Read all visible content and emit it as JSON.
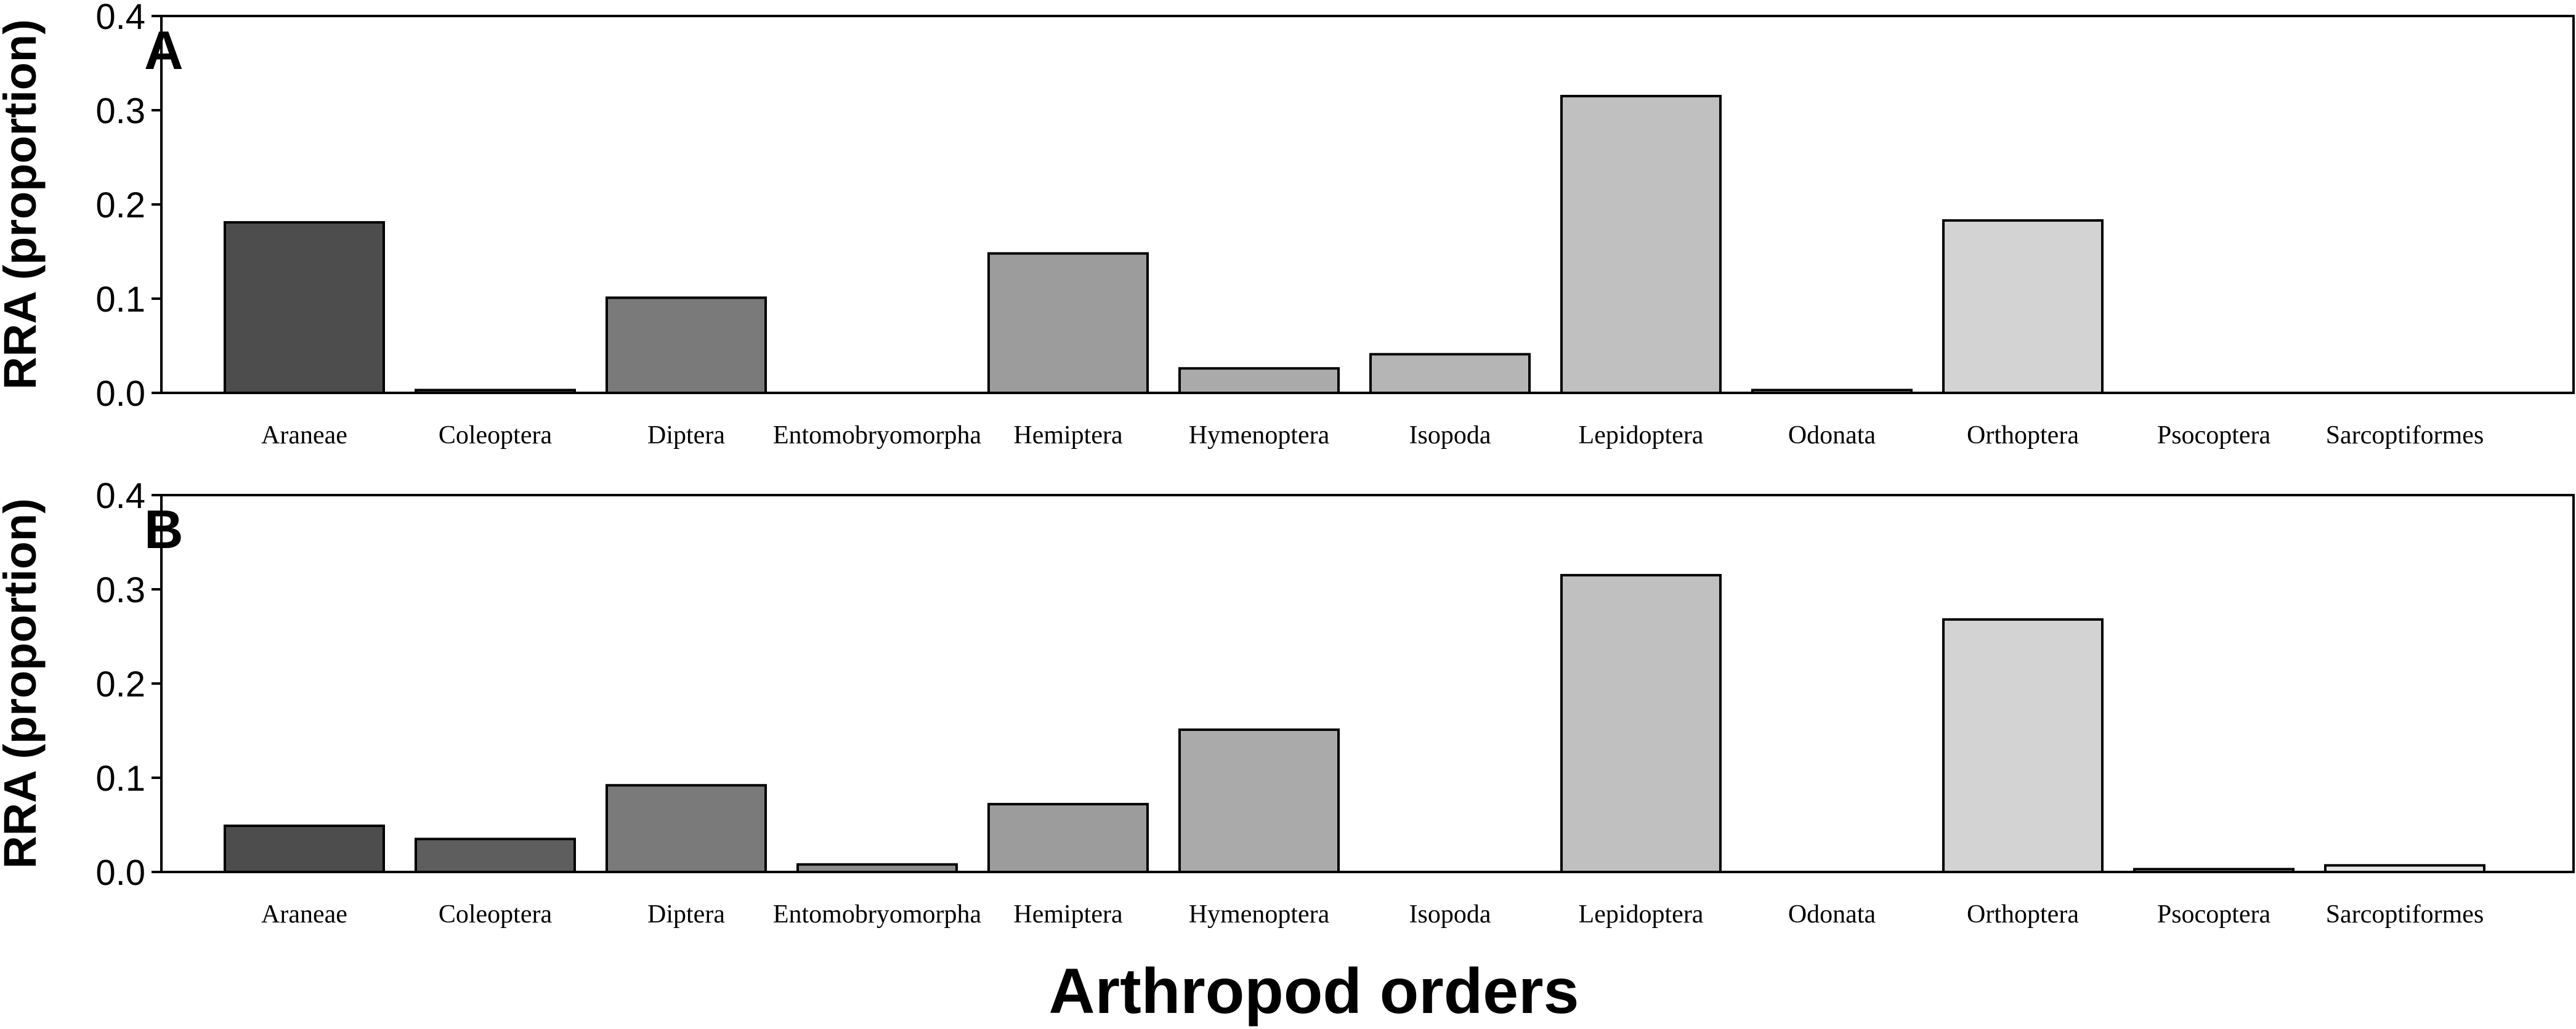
{
  "chart_data": [
    {
      "type": "bar",
      "panel": "A",
      "ylabel": "RRA (proportion)",
      "ylim": [
        0,
        0.4
      ],
      "yticks": [
        "0.0",
        "0.1",
        "0.2",
        "0.3",
        "0.4"
      ],
      "categories": [
        "Araneae",
        "Coleoptera",
        "Diptera",
        "Entomobryomorpha",
        "Hemiptera",
        "Hymenoptera",
        "Isopoda",
        "Lepidoptera",
        "Odonata",
        "Orthoptera",
        "Psocoptera",
        "Sarcoptiformes"
      ],
      "values": [
        0.181,
        0.003,
        0.101,
        0.0,
        0.148,
        0.026,
        0.041,
        0.315,
        0.003,
        0.183,
        0.0,
        0.0
      ],
      "colors": [
        "#4d4d4d",
        "#5e5e5e",
        "#7a7a7a",
        "#8c8c8c",
        "#9c9c9c",
        "#aaaaaa",
        "#b5b5b5",
        "#c0c0c0",
        "#c8c8c8",
        "#d3d3d3",
        "#dcdcdc",
        "#e6e6e6"
      ]
    },
    {
      "type": "bar",
      "panel": "B",
      "ylabel": "RRA (proportion)",
      "ylim": [
        0,
        0.4
      ],
      "yticks": [
        "0.0",
        "0.1",
        "0.2",
        "0.3",
        "0.4"
      ],
      "categories": [
        "Araneae",
        "Coleoptera",
        "Diptera",
        "Entomobryomorpha",
        "Hemiptera",
        "Hymenoptera",
        "Isopoda",
        "Lepidoptera",
        "Odonata",
        "Orthoptera",
        "Psocoptera",
        "Sarcoptiformes"
      ],
      "values": [
        0.049,
        0.035,
        0.092,
        0.008,
        0.072,
        0.151,
        0.0,
        0.315,
        0.0,
        0.268,
        0.003,
        0.007
      ],
      "colors": [
        "#4d4d4d",
        "#5e5e5e",
        "#7a7a7a",
        "#8c8c8c",
        "#9c9c9c",
        "#aaaaaa",
        "#b5b5b5",
        "#c0c0c0",
        "#c8c8c8",
        "#d3d3d3",
        "#dcdcdc",
        "#e6e6e6"
      ]
    }
  ],
  "xlabel": "Arthropod orders"
}
